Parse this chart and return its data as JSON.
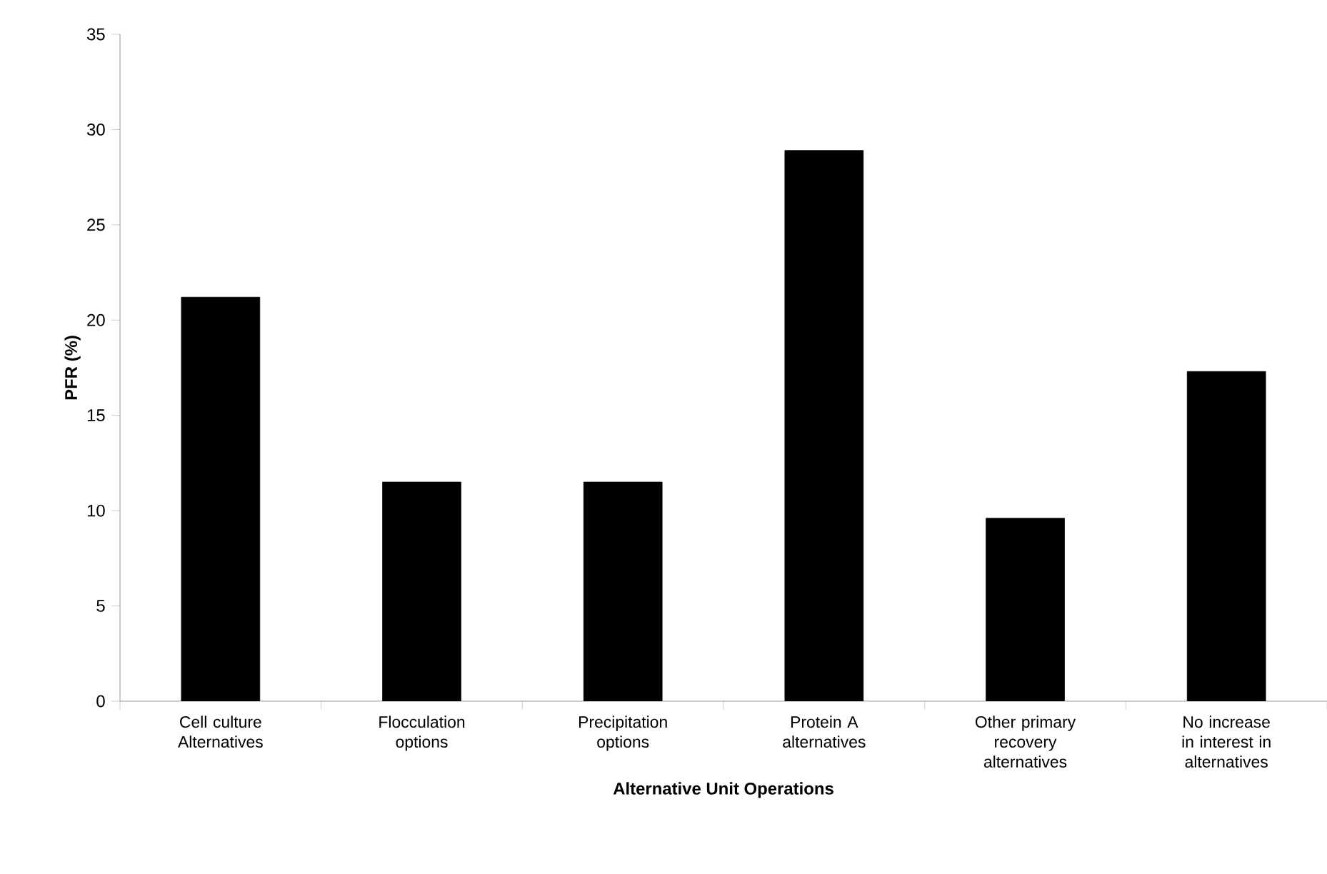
{
  "chart_data": {
    "type": "bar",
    "xlabel": "Alternative Unit Operations",
    "ylabel": "PFR (%)",
    "categories": [
      "Cell culture Alternatives",
      "Flocculation options",
      "Precipitation options",
      "Protein A alternatives",
      "Other primary recovery alternatives",
      "No increase in interest in alternatives"
    ],
    "values": [
      21.2,
      11.5,
      11.5,
      28.9,
      9.6,
      17.3
    ],
    "color": "#000000",
    "ylim": [
      0,
      35
    ],
    "yticks": [
      0,
      5,
      10,
      15,
      20,
      25,
      30,
      35
    ],
    "grid": false
  }
}
